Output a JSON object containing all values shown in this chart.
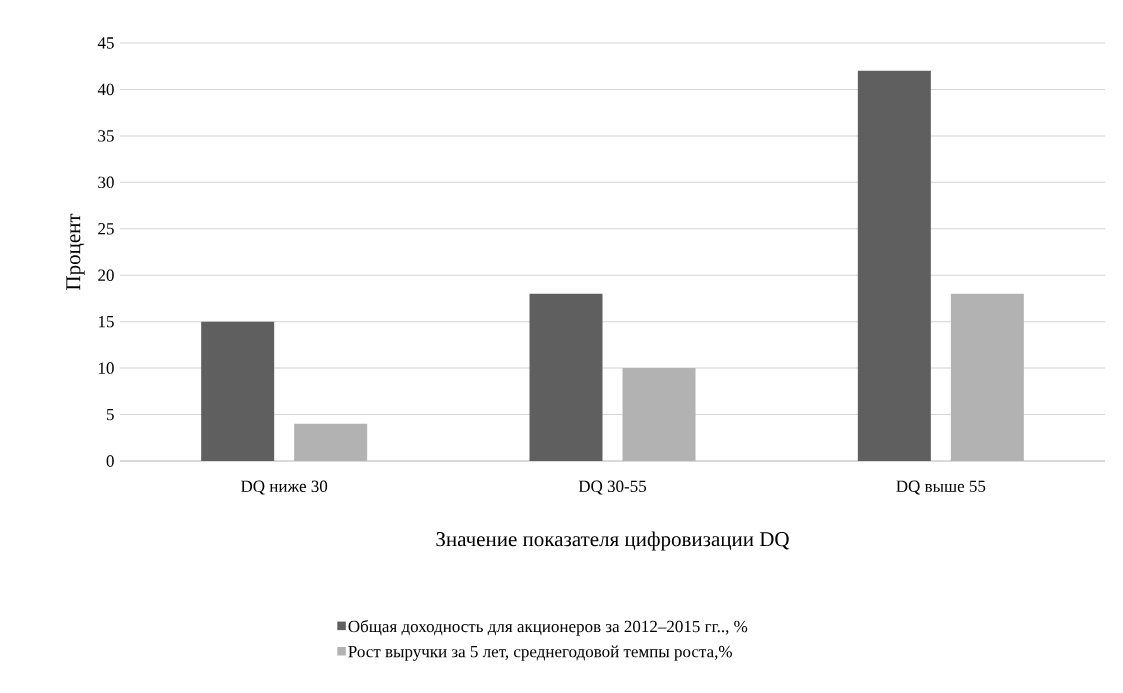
{
  "chart_data": {
    "type": "bar",
    "xlabel": "Значение показателя цифровизации DQ",
    "ylabel": "Процент",
    "categories": [
      "DQ  ниже 30",
      "DQ 30-55",
      "DQ выше 55"
    ],
    "series": [
      {
        "name": "Общая доходность для акционеров за  2012–2015 гг.., %",
        "color": "#5f5f5f",
        "values": [
          15,
          18,
          42
        ]
      },
      {
        "name": "Рост выручки за 5 лет, среднегодовой темпы роста,%",
        "color": "#b2b2b2",
        "values": [
          4,
          10,
          18
        ]
      }
    ],
    "ylim": [
      0,
      45
    ],
    "yticks": [
      0,
      5,
      10,
      15,
      20,
      25,
      30,
      35,
      40,
      45
    ],
    "grid": "y",
    "legend": "bottom"
  }
}
